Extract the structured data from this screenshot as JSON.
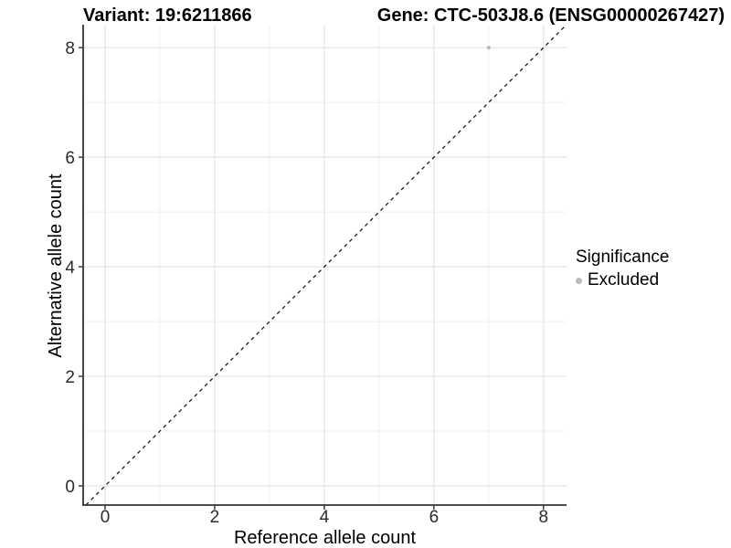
{
  "header": {
    "variant_title": "Variant: 19:6211866",
    "gene_title": "Gene: CTC-503J8.6 (ENSG00000267427)"
  },
  "axes": {
    "x_label": "Reference allele count",
    "y_label": "Alternative allele count"
  },
  "legend": {
    "title": "Significance",
    "items": [
      {
        "label": "Excluded",
        "color": "#b9b9b9"
      }
    ]
  },
  "chart_data": {
    "type": "scatter",
    "title_left": "Variant: 19:6211866",
    "title_right": "Gene: CTC-503J8.6 (ENSG00000267427)",
    "xlabel": "Reference allele count",
    "ylabel": "Alternative allele count",
    "xlim": [
      -0.4,
      8.42
    ],
    "ylim": [
      -0.35,
      8.42
    ],
    "xticks": [
      0,
      2,
      4,
      6,
      8
    ],
    "yticks": [
      0,
      2,
      4,
      6,
      8
    ],
    "grid": "on",
    "grid_minor": [
      1,
      3,
      5,
      7
    ],
    "legend_position": "right",
    "reference_line": {
      "kind": "identity",
      "slope": 1,
      "intercept": 0,
      "linetype": "dashed",
      "color": "#1a1a1a"
    },
    "series": [
      {
        "name": "Excluded",
        "color": "#b9b9b9",
        "points": [
          {
            "x": 7,
            "y": 8
          }
        ]
      }
    ]
  },
  "colors": {
    "background": "#ffffff",
    "major_grid": "#e3e3e3",
    "minor_grid": "#efefef",
    "axis_line": "#333333",
    "tick_mark": "#333333",
    "tick_text": "#2b2b2b",
    "point_excluded": "#b9b9b9"
  }
}
